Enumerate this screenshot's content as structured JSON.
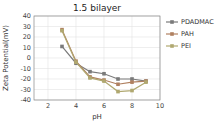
{
  "chart_data": {
    "type": "line",
    "title": "1.5 bilayer",
    "xlabel": "pH",
    "ylabel": "Zeta Potential(mV)",
    "x": [
      3,
      4,
      5,
      6,
      7,
      8,
      9
    ],
    "series": [
      {
        "name": "PDADMAC",
        "color": "#7a7a7a",
        "marker": "square",
        "values": [
          11,
          -5,
          -13,
          -15,
          -20,
          -20,
          -22
        ]
      },
      {
        "name": "PAH",
        "color": "#b08060",
        "marker": "square",
        "values": [
          27,
          -3,
          -18,
          -21,
          -25,
          -23,
          -22
        ]
      },
      {
        "name": "PEI",
        "color": "#b0a870",
        "marker": "square",
        "values": [
          26,
          -4,
          -19,
          -22,
          -32,
          -31,
          -23
        ]
      }
    ],
    "xlim": [
      1,
      10
    ],
    "ylim": [
      -40,
      40
    ],
    "xticks": [
      2,
      4,
      6,
      8,
      10
    ],
    "yticks": [
      -40,
      -30,
      -20,
      -10,
      0,
      10,
      20,
      30,
      40
    ],
    "grid": true,
    "legend": "right"
  }
}
